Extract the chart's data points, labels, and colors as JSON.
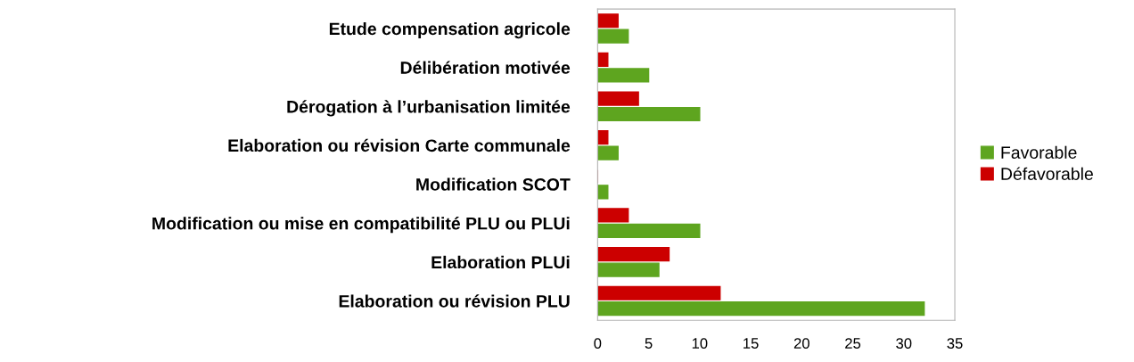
{
  "chart_data": {
    "type": "bar",
    "orientation": "horizontal",
    "categories": [
      "Etude compensation agricole",
      "Délibération motivée",
      "Dérogation à l’urbanisation limitée",
      "Elaboration ou révision Carte communale",
      "Modification SCOT",
      "Modification ou mise en compatibilité PLU ou PLUi",
      "Elaboration PLUi",
      "Elaboration ou révision PLU"
    ],
    "series": [
      {
        "name": "Favorable",
        "color": "#5ea51f",
        "values": [
          3,
          5,
          10,
          2,
          1,
          10,
          6,
          32
        ]
      },
      {
        "name": "Défavorable",
        "color": "#cc0000",
        "values": [
          2,
          1,
          4,
          1,
          0,
          3,
          7,
          12
        ]
      }
    ],
    "xlim": [
      0,
      35
    ],
    "xticks": [
      0,
      5,
      10,
      15,
      20,
      25,
      30,
      35
    ],
    "grid": false,
    "legend": "right"
  }
}
